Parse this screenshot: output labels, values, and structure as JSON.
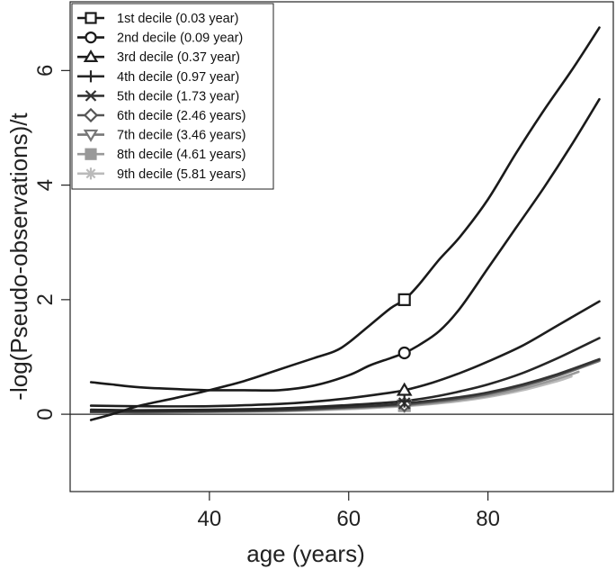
{
  "chart_data": {
    "type": "line",
    "title": "",
    "xlabel": "age (years)",
    "ylabel": "-log(Pseudo-observations)/t",
    "xlim": [
      20,
      98
    ],
    "ylim": [
      -1.35,
      7.2
    ],
    "x_ticks": [
      40,
      60,
      80
    ],
    "y_ticks": [
      0,
      2,
      4,
      6
    ],
    "reference_line_y": 0,
    "legend_position": "top-left",
    "marker_x": 68,
    "series": [
      {
        "name": "1st decile (0.03 year)",
        "marker": "square",
        "color": "#1a1a1a",
        "x": [
          23,
          26,
          30,
          35,
          40,
          45,
          50,
          55,
          58,
          60,
          63,
          66,
          68,
          70,
          73,
          76,
          80,
          84,
          88,
          92,
          96
        ],
        "y": [
          -0.1,
          0.0,
          0.15,
          0.28,
          0.42,
          0.58,
          0.78,
          0.98,
          1.1,
          1.25,
          1.55,
          1.85,
          2.0,
          2.25,
          2.7,
          3.1,
          3.75,
          4.55,
          5.3,
          6.0,
          6.75
        ]
      },
      {
        "name": "2nd decile (0.09 year)",
        "marker": "circle",
        "color": "#1a1a1a",
        "x": [
          23,
          26,
          30,
          35,
          40,
          45,
          50,
          55,
          60,
          63,
          66,
          68,
          70,
          73,
          76,
          80,
          84,
          88,
          92,
          96
        ],
        "y": [
          0.56,
          0.52,
          0.47,
          0.44,
          0.42,
          0.42,
          0.42,
          0.5,
          0.68,
          0.85,
          0.98,
          1.07,
          1.2,
          1.45,
          1.85,
          2.55,
          3.25,
          3.95,
          4.7,
          5.5
        ]
      },
      {
        "name": "3rd decile (0.37 year)",
        "marker": "triangle",
        "color": "#1e1e1e",
        "x": [
          23,
          30,
          40,
          50,
          55,
          60,
          65,
          68,
          72,
          76,
          80,
          85,
          90,
          96
        ],
        "y": [
          0.15,
          0.14,
          0.14,
          0.18,
          0.22,
          0.28,
          0.36,
          0.42,
          0.55,
          0.72,
          0.92,
          1.2,
          1.55,
          1.97
        ]
      },
      {
        "name": "4th decile (0.97 year)",
        "marker": "plus",
        "color": "#262626",
        "x": [
          23,
          30,
          40,
          50,
          60,
          65,
          68,
          72,
          76,
          80,
          85,
          90,
          96
        ],
        "y": [
          0.08,
          0.07,
          0.08,
          0.1,
          0.16,
          0.2,
          0.23,
          0.3,
          0.4,
          0.52,
          0.72,
          0.98,
          1.33
        ]
      },
      {
        "name": "5th decile (1.73 year)",
        "marker": "x",
        "color": "#333333",
        "x": [
          23,
          30,
          40,
          50,
          60,
          65,
          68,
          72,
          76,
          80,
          85,
          90,
          96
        ],
        "y": [
          0.05,
          0.05,
          0.06,
          0.08,
          0.13,
          0.16,
          0.19,
          0.24,
          0.3,
          0.38,
          0.52,
          0.7,
          0.96
        ]
      },
      {
        "name": "6th decile (2.46 years)",
        "marker": "diamond",
        "color": "#555555",
        "x": [
          23,
          30,
          40,
          50,
          60,
          65,
          68,
          72,
          76,
          80,
          85,
          90,
          96
        ],
        "y": [
          0.04,
          0.04,
          0.05,
          0.07,
          0.12,
          0.15,
          0.17,
          0.22,
          0.28,
          0.36,
          0.5,
          0.68,
          0.95
        ]
      },
      {
        "name": "7th decile (3.46 years)",
        "marker": "triangle-down",
        "color": "#777777",
        "x": [
          23,
          30,
          40,
          50,
          60,
          65,
          68,
          72,
          76,
          80,
          85,
          90,
          96
        ],
        "y": [
          0.03,
          0.04,
          0.05,
          0.06,
          0.11,
          0.14,
          0.16,
          0.21,
          0.27,
          0.35,
          0.49,
          0.67,
          0.93
        ]
      },
      {
        "name": "8th decile (4.61 years)",
        "marker": "square-filled",
        "color": "#999999",
        "x": [
          23,
          30,
          40,
          50,
          60,
          65,
          68,
          72,
          76,
          80,
          85,
          90,
          93
        ],
        "y": [
          0.03,
          0.03,
          0.04,
          0.06,
          0.1,
          0.13,
          0.15,
          0.19,
          0.25,
          0.32,
          0.45,
          0.62,
          0.74
        ]
      },
      {
        "name": "9th decile (5.81 years)",
        "marker": "asterisk",
        "color": "#bbbbbb",
        "x": [
          23,
          30,
          40,
          50,
          60,
          65,
          68,
          72,
          76,
          80,
          85,
          90,
          92
        ],
        "y": [
          0.02,
          0.03,
          0.04,
          0.05,
          0.09,
          0.12,
          0.14,
          0.18,
          0.23,
          0.3,
          0.42,
          0.58,
          0.66
        ]
      }
    ]
  }
}
